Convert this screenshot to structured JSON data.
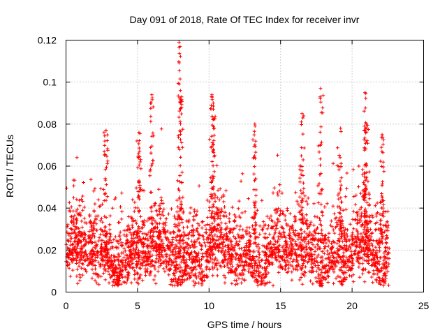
{
  "chart_data": {
    "type": "scatter",
    "title": "Day 091 of 2018, Rate Of TEC Index for receiver invr",
    "xlabel": "GPS time / hours",
    "ylabel": "ROTI / TECUs",
    "xlim": [
      0,
      25
    ],
    "ylim": [
      0,
      0.12
    ],
    "x_ticks": [
      0,
      5,
      10,
      15,
      20,
      25
    ],
    "x_tick_labels": [
      "0",
      "5",
      "10",
      "15",
      "20",
      "25"
    ],
    "y_ticks": [
      0,
      0.02,
      0.04,
      0.06,
      0.08,
      0.1,
      0.12
    ],
    "y_tick_labels": [
      "0",
      "0.02",
      "0.04",
      "0.06",
      "0.08",
      "0.1",
      "0.12"
    ],
    "grid": true,
    "marker": "+",
    "color": "#ff0000",
    "data_x_range": [
      0,
      22.6
    ],
    "noted_peaks": [
      {
        "x": 2.8,
        "y": 0.077
      },
      {
        "x": 5.1,
        "y": 0.076
      },
      {
        "x": 6.0,
        "y": 0.094
      },
      {
        "x": 7.9,
        "y": 0.119
      },
      {
        "x": 8.0,
        "y": 0.096
      },
      {
        "x": 10.2,
        "y": 0.094
      },
      {
        "x": 10.3,
        "y": 0.09
      },
      {
        "x": 13.2,
        "y": 0.08
      },
      {
        "x": 16.5,
        "y": 0.085
      },
      {
        "x": 17.8,
        "y": 0.097
      },
      {
        "x": 19.2,
        "y": 0.078
      },
      {
        "x": 20.9,
        "y": 0.095
      },
      {
        "x": 21.0,
        "y": 0.08
      },
      {
        "x": 22.1,
        "y": 0.075
      }
    ]
  }
}
